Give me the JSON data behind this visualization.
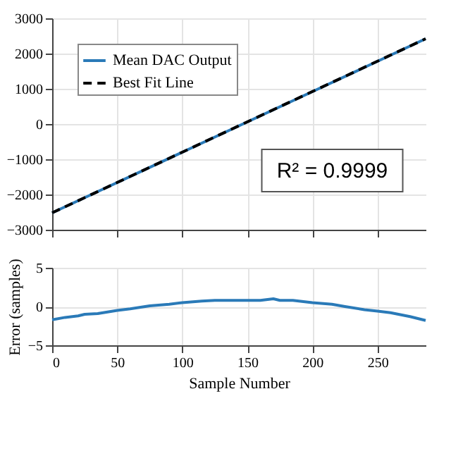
{
  "chart_data": [
    {
      "type": "line",
      "xlim": [
        0,
        287
      ],
      "xticks": [
        0,
        50,
        100,
        150,
        200,
        250
      ],
      "ylim": [
        -3000,
        3000
      ],
      "yticks": [
        -3000,
        -2000,
        -1000,
        0,
        1000,
        2000,
        3000
      ],
      "grid": true,
      "legend": "top left",
      "tick_labels": "y",
      "annotations": [
        "R² = 0.9999"
      ],
      "series": [
        {
          "name": "Mean DAC Output",
          "color": "#2a7ab8",
          "line_style": "solid",
          "x": [
            0,
            50,
            100,
            150,
            200,
            250,
            287
          ],
          "values": [
            -2520,
            -1660,
            -800,
            60,
            920,
            1780,
            2420
          ]
        },
        {
          "name": "Best Fit Line",
          "color": "#000000",
          "line_style": "dashed",
          "x": [
            0,
            287
          ],
          "values": [
            -2520,
            2420
          ]
        }
      ]
    },
    {
      "type": "line",
      "xlabel": "Sample Number",
      "ylabel": "Error (samples)",
      "xlim": [
        0,
        287
      ],
      "xticks": [
        0,
        50,
        100,
        150,
        200,
        250
      ],
      "ylim": [
        -5,
        5
      ],
      "yticks": [
        -5,
        0,
        5
      ],
      "grid": true,
      "series": [
        {
          "color": "#2a7ab8",
          "line_style": "solid",
          "x": [
            0,
            10,
            20,
            25,
            35,
            50,
            60,
            75,
            90,
            100,
            115,
            125,
            140,
            150,
            160,
            170,
            175,
            185,
            200,
            215,
            225,
            240,
            250,
            260,
            275,
            287
          ],
          "values": [
            -1.7,
            -1.4,
            -1.2,
            -1.0,
            -0.9,
            -0.5,
            -0.3,
            0.1,
            0.3,
            0.5,
            0.7,
            0.8,
            0.8,
            0.8,
            0.8,
            1.0,
            0.8,
            0.8,
            0.5,
            0.3,
            0.0,
            -0.4,
            -0.6,
            -0.8,
            -1.3,
            -1.8
          ]
        }
      ]
    }
  ]
}
